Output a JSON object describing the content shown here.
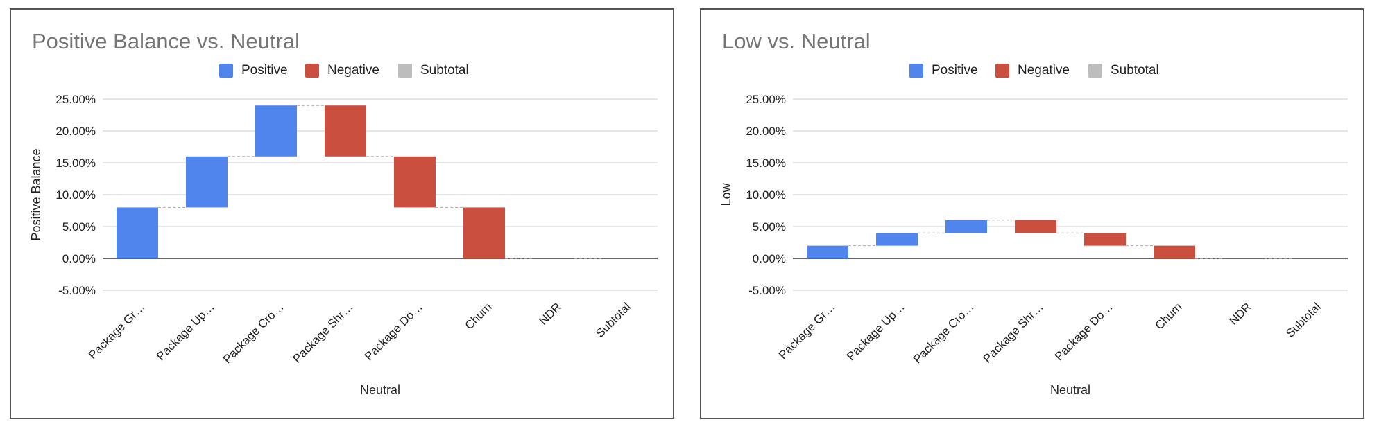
{
  "chart_data": [
    {
      "type": "waterfall",
      "title": "Positive Balance vs. Neutral",
      "xlabel": "Neutral",
      "ylabel": "Positive Balance",
      "ylim": [
        -5,
        25
      ],
      "yticks": [
        25,
        20,
        15,
        10,
        5,
        0,
        -5
      ],
      "ytick_labels": [
        "25.00%",
        "20.00%",
        "15.00%",
        "10.00%",
        "5.00%",
        "0.00%",
        "-5.00%"
      ],
      "categories": [
        "Package Gr…",
        "Package Up…",
        "Package Cro…",
        "Package Shr…",
        "Package Do…",
        "Churn",
        "NDR",
        "Subtotal"
      ],
      "bars": [
        {
          "start": 0,
          "end": 8,
          "kind": "positive"
        },
        {
          "start": 8,
          "end": 16,
          "kind": "positive"
        },
        {
          "start": 16,
          "end": 24,
          "kind": "positive"
        },
        {
          "start": 24,
          "end": 16,
          "kind": "negative"
        },
        {
          "start": 16,
          "end": 8,
          "kind": "negative"
        },
        {
          "start": 8,
          "end": 0,
          "kind": "negative"
        },
        {
          "start": 0,
          "end": 0,
          "kind": "subtotal"
        },
        {
          "start": 0,
          "end": 0,
          "kind": "subtotal"
        }
      ],
      "legend": [
        {
          "label": "Positive",
          "color": "#5085EE"
        },
        {
          "label": "Negative",
          "color": "#CB4F3F"
        },
        {
          "label": "Subtotal",
          "color": "#BDBDBD"
        }
      ],
      "legend_position": "top",
      "grid": true
    },
    {
      "type": "waterfall",
      "title": "Low vs. Neutral",
      "xlabel": "Neutral",
      "ylabel": "Low",
      "ylim": [
        -5,
        25
      ],
      "yticks": [
        25,
        20,
        15,
        10,
        5,
        0,
        -5
      ],
      "ytick_labels": [
        "25.00%",
        "20.00%",
        "15.00%",
        "10.00%",
        "5.00%",
        "0.00%",
        "-5.00%"
      ],
      "categories": [
        "Package Gr…",
        "Package Up…",
        "Package Cro…",
        "Package Shr…",
        "Package Do…",
        "Churn",
        "NDR",
        "Subtotal"
      ],
      "bars": [
        {
          "start": 0,
          "end": 2,
          "kind": "positive"
        },
        {
          "start": 2,
          "end": 4,
          "kind": "positive"
        },
        {
          "start": 4,
          "end": 6,
          "kind": "positive"
        },
        {
          "start": 6,
          "end": 4,
          "kind": "negative"
        },
        {
          "start": 4,
          "end": 2,
          "kind": "negative"
        },
        {
          "start": 2,
          "end": 0,
          "kind": "negative"
        },
        {
          "start": 0,
          "end": 0,
          "kind": "subtotal"
        },
        {
          "start": 0,
          "end": 0,
          "kind": "subtotal"
        }
      ],
      "legend": [
        {
          "label": "Positive",
          "color": "#5085EE"
        },
        {
          "label": "Negative",
          "color": "#CB4F3F"
        },
        {
          "label": "Subtotal",
          "color": "#BDBDBD"
        }
      ],
      "legend_position": "top",
      "grid": true
    }
  ]
}
